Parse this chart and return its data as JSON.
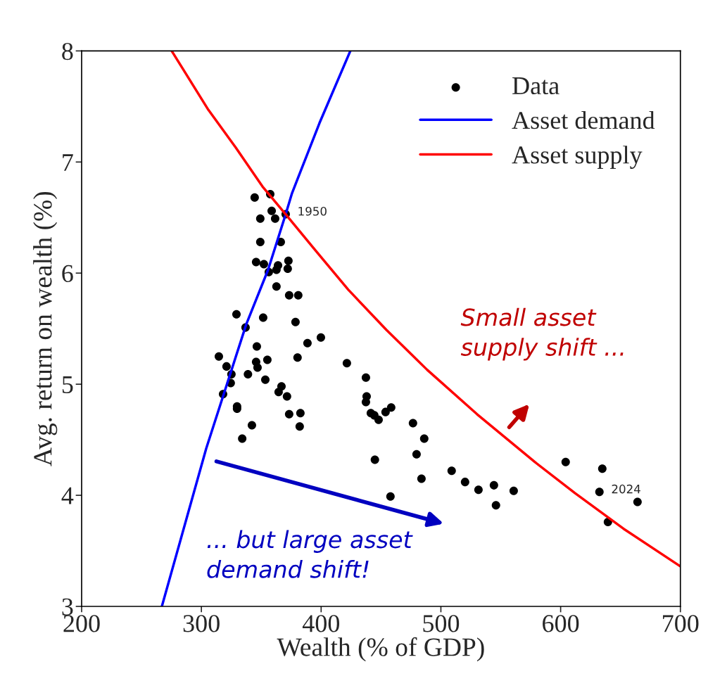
{
  "chart_data": {
    "type": "scatter",
    "xlabel": "Wealth (% of GDP)",
    "ylabel": "Avg. return on wealth (%)",
    "xlim": [
      200,
      700
    ],
    "ylim": [
      3,
      8
    ],
    "xticks": [
      200,
      300,
      400,
      500,
      600,
      700
    ],
    "yticks": [
      3,
      4,
      5,
      6,
      7,
      8
    ],
    "grid": false,
    "legend": "top right",
    "series": [
      {
        "name": "Data",
        "color": "#000000",
        "marker": "circle",
        "x": [
          344.5,
          357.5,
          358.7,
          361.6,
          349.2,
          370.4,
          349.2,
          366.3,
          345.7,
          352.2,
          364.0,
          372.7,
          356.3,
          362.7,
          372.1,
          362.7,
          373.3,
          380.9,
          329.3,
          351.6,
          336.9,
          378.6,
          388.6,
          399.8,
          314.6,
          346.3,
          380.3,
          345.7,
          355.1,
          321.0,
          346.9,
          325.1,
          338.9,
          324.5,
          318.1,
          353.4,
          366.9,
          364.5,
          371.5,
          329.8,
          329.8,
          373.3,
          382.7,
          382.1,
          342.2,
          334.1,
          421.5,
          437.4,
          438.0,
          437.4,
          441.5,
          444.4,
          448.0,
          453.8,
          458.5,
          444.9,
          476.7,
          486.1,
          479.7,
          483.8,
          457.9,
          509.0,
          520.2,
          531.4,
          544.3,
          546.0,
          560.8,
          604.2,
          634.8,
          632.4,
          639.5,
          664.2
        ],
        "values": [
          6.68,
          6.71,
          6.56,
          6.49,
          6.49,
          6.53,
          6.28,
          6.28,
          6.1,
          6.08,
          6.07,
          6.11,
          6.01,
          6.03,
          6.04,
          5.88,
          5.8,
          5.8,
          5.63,
          5.6,
          5.51,
          5.56,
          5.37,
          5.42,
          5.25,
          5.34,
          5.24,
          5.2,
          5.22,
          5.16,
          5.15,
          5.09,
          5.09,
          5.01,
          4.91,
          5.04,
          4.98,
          4.93,
          4.89,
          4.8,
          4.78,
          4.73,
          4.74,
          4.62,
          4.63,
          4.51,
          5.19,
          5.06,
          4.89,
          4.84,
          4.74,
          4.72,
          4.68,
          4.75,
          4.79,
          4.32,
          4.65,
          4.51,
          4.37,
          4.15,
          3.99,
          4.22,
          4.12,
          4.05,
          4.09,
          3.91,
          4.04,
          4.3,
          4.24,
          4.03,
          3.76,
          3.94
        ]
      },
      {
        "name": "Asset demand",
        "type": "line",
        "color": "#0000ff",
        "marker": "none",
        "line_style": "solid",
        "x": [
          267.0,
          304.0,
          337.5,
          355.7,
          370.4,
          375.7,
          398.6,
          424.4
        ],
        "values": [
          3.0,
          4.42,
          5.54,
          6.03,
          6.53,
          6.72,
          7.35,
          8.0
        ]
      },
      {
        "name": "Asset supply",
        "type": "line",
        "color": "#ff0000",
        "marker": "none",
        "line_style": "solid",
        "x": [
          275.2,
          305.8,
          328.7,
          351.0,
          370.4,
          395.6,
          422.7,
          454.4,
          488.5,
          530.2,
          578.4,
          611.9,
          652.4,
          700.0
        ],
        "values": [
          8.0,
          7.47,
          7.13,
          6.78,
          6.53,
          6.2,
          5.85,
          5.49,
          5.13,
          4.73,
          4.3,
          4.02,
          3.7,
          3.36
        ]
      }
    ],
    "annotations": [
      {
        "text": "1950",
        "x": 370.4,
        "y": 6.53
      },
      {
        "text": "2024",
        "x": 632.4,
        "y": 4.03
      },
      "Small asset\nsupply shift ...",
      "... but large asset\ndemand shift!"
    ]
  }
}
